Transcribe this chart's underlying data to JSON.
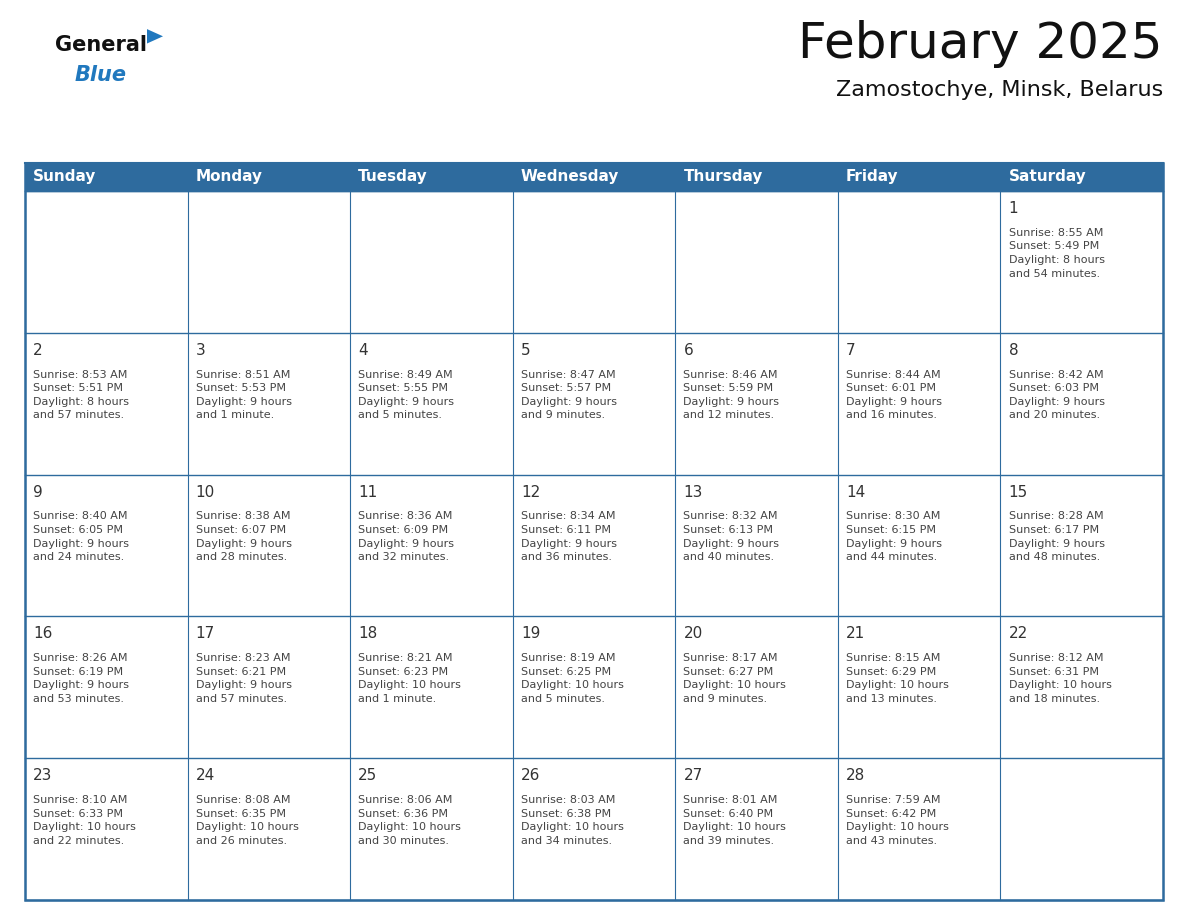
{
  "title": "February 2025",
  "subtitle": "Zamostochye, Minsk, Belarus",
  "header_color": "#2E6B9E",
  "header_text_color": "#FFFFFF",
  "cell_bg_color": "#FFFFFF",
  "border_color": "#2E6B9E",
  "text_color": "#333333",
  "info_color": "#444444",
  "day_headers": [
    "Sunday",
    "Monday",
    "Tuesday",
    "Wednesday",
    "Thursday",
    "Friday",
    "Saturday"
  ],
  "weeks": [
    {
      "days": [
        {
          "day": null,
          "info": null
        },
        {
          "day": null,
          "info": null
        },
        {
          "day": null,
          "info": null
        },
        {
          "day": null,
          "info": null
        },
        {
          "day": null,
          "info": null
        },
        {
          "day": null,
          "info": null
        },
        {
          "day": "1",
          "info": "Sunrise: 8:55 AM\nSunset: 5:49 PM\nDaylight: 8 hours\nand 54 minutes."
        }
      ]
    },
    {
      "days": [
        {
          "day": "2",
          "info": "Sunrise: 8:53 AM\nSunset: 5:51 PM\nDaylight: 8 hours\nand 57 minutes."
        },
        {
          "day": "3",
          "info": "Sunrise: 8:51 AM\nSunset: 5:53 PM\nDaylight: 9 hours\nand 1 minute."
        },
        {
          "day": "4",
          "info": "Sunrise: 8:49 AM\nSunset: 5:55 PM\nDaylight: 9 hours\nand 5 minutes."
        },
        {
          "day": "5",
          "info": "Sunrise: 8:47 AM\nSunset: 5:57 PM\nDaylight: 9 hours\nand 9 minutes."
        },
        {
          "day": "6",
          "info": "Sunrise: 8:46 AM\nSunset: 5:59 PM\nDaylight: 9 hours\nand 12 minutes."
        },
        {
          "day": "7",
          "info": "Sunrise: 8:44 AM\nSunset: 6:01 PM\nDaylight: 9 hours\nand 16 minutes."
        },
        {
          "day": "8",
          "info": "Sunrise: 8:42 AM\nSunset: 6:03 PM\nDaylight: 9 hours\nand 20 minutes."
        }
      ]
    },
    {
      "days": [
        {
          "day": "9",
          "info": "Sunrise: 8:40 AM\nSunset: 6:05 PM\nDaylight: 9 hours\nand 24 minutes."
        },
        {
          "day": "10",
          "info": "Sunrise: 8:38 AM\nSunset: 6:07 PM\nDaylight: 9 hours\nand 28 minutes."
        },
        {
          "day": "11",
          "info": "Sunrise: 8:36 AM\nSunset: 6:09 PM\nDaylight: 9 hours\nand 32 minutes."
        },
        {
          "day": "12",
          "info": "Sunrise: 8:34 AM\nSunset: 6:11 PM\nDaylight: 9 hours\nand 36 minutes."
        },
        {
          "day": "13",
          "info": "Sunrise: 8:32 AM\nSunset: 6:13 PM\nDaylight: 9 hours\nand 40 minutes."
        },
        {
          "day": "14",
          "info": "Sunrise: 8:30 AM\nSunset: 6:15 PM\nDaylight: 9 hours\nand 44 minutes."
        },
        {
          "day": "15",
          "info": "Sunrise: 8:28 AM\nSunset: 6:17 PM\nDaylight: 9 hours\nand 48 minutes."
        }
      ]
    },
    {
      "days": [
        {
          "day": "16",
          "info": "Sunrise: 8:26 AM\nSunset: 6:19 PM\nDaylight: 9 hours\nand 53 minutes."
        },
        {
          "day": "17",
          "info": "Sunrise: 8:23 AM\nSunset: 6:21 PM\nDaylight: 9 hours\nand 57 minutes."
        },
        {
          "day": "18",
          "info": "Sunrise: 8:21 AM\nSunset: 6:23 PM\nDaylight: 10 hours\nand 1 minute."
        },
        {
          "day": "19",
          "info": "Sunrise: 8:19 AM\nSunset: 6:25 PM\nDaylight: 10 hours\nand 5 minutes."
        },
        {
          "day": "20",
          "info": "Sunrise: 8:17 AM\nSunset: 6:27 PM\nDaylight: 10 hours\nand 9 minutes."
        },
        {
          "day": "21",
          "info": "Sunrise: 8:15 AM\nSunset: 6:29 PM\nDaylight: 10 hours\nand 13 minutes."
        },
        {
          "day": "22",
          "info": "Sunrise: 8:12 AM\nSunset: 6:31 PM\nDaylight: 10 hours\nand 18 minutes."
        }
      ]
    },
    {
      "days": [
        {
          "day": "23",
          "info": "Sunrise: 8:10 AM\nSunset: 6:33 PM\nDaylight: 10 hours\nand 22 minutes."
        },
        {
          "day": "24",
          "info": "Sunrise: 8:08 AM\nSunset: 6:35 PM\nDaylight: 10 hours\nand 26 minutes."
        },
        {
          "day": "25",
          "info": "Sunrise: 8:06 AM\nSunset: 6:36 PM\nDaylight: 10 hours\nand 30 minutes."
        },
        {
          "day": "26",
          "info": "Sunrise: 8:03 AM\nSunset: 6:38 PM\nDaylight: 10 hours\nand 34 minutes."
        },
        {
          "day": "27",
          "info": "Sunrise: 8:01 AM\nSunset: 6:40 PM\nDaylight: 10 hours\nand 39 minutes."
        },
        {
          "day": "28",
          "info": "Sunrise: 7:59 AM\nSunset: 6:42 PM\nDaylight: 10 hours\nand 43 minutes."
        },
        {
          "day": null,
          "info": null
        }
      ]
    }
  ],
  "logo_general": "General",
  "logo_blue": "Blue",
  "logo_general_color": "#111111",
  "logo_blue_color": "#2078BE",
  "logo_triangle_color": "#2078BE",
  "title_fontsize": 36,
  "subtitle_fontsize": 16,
  "header_fontsize": 11,
  "day_num_fontsize": 11,
  "info_fontsize": 8
}
